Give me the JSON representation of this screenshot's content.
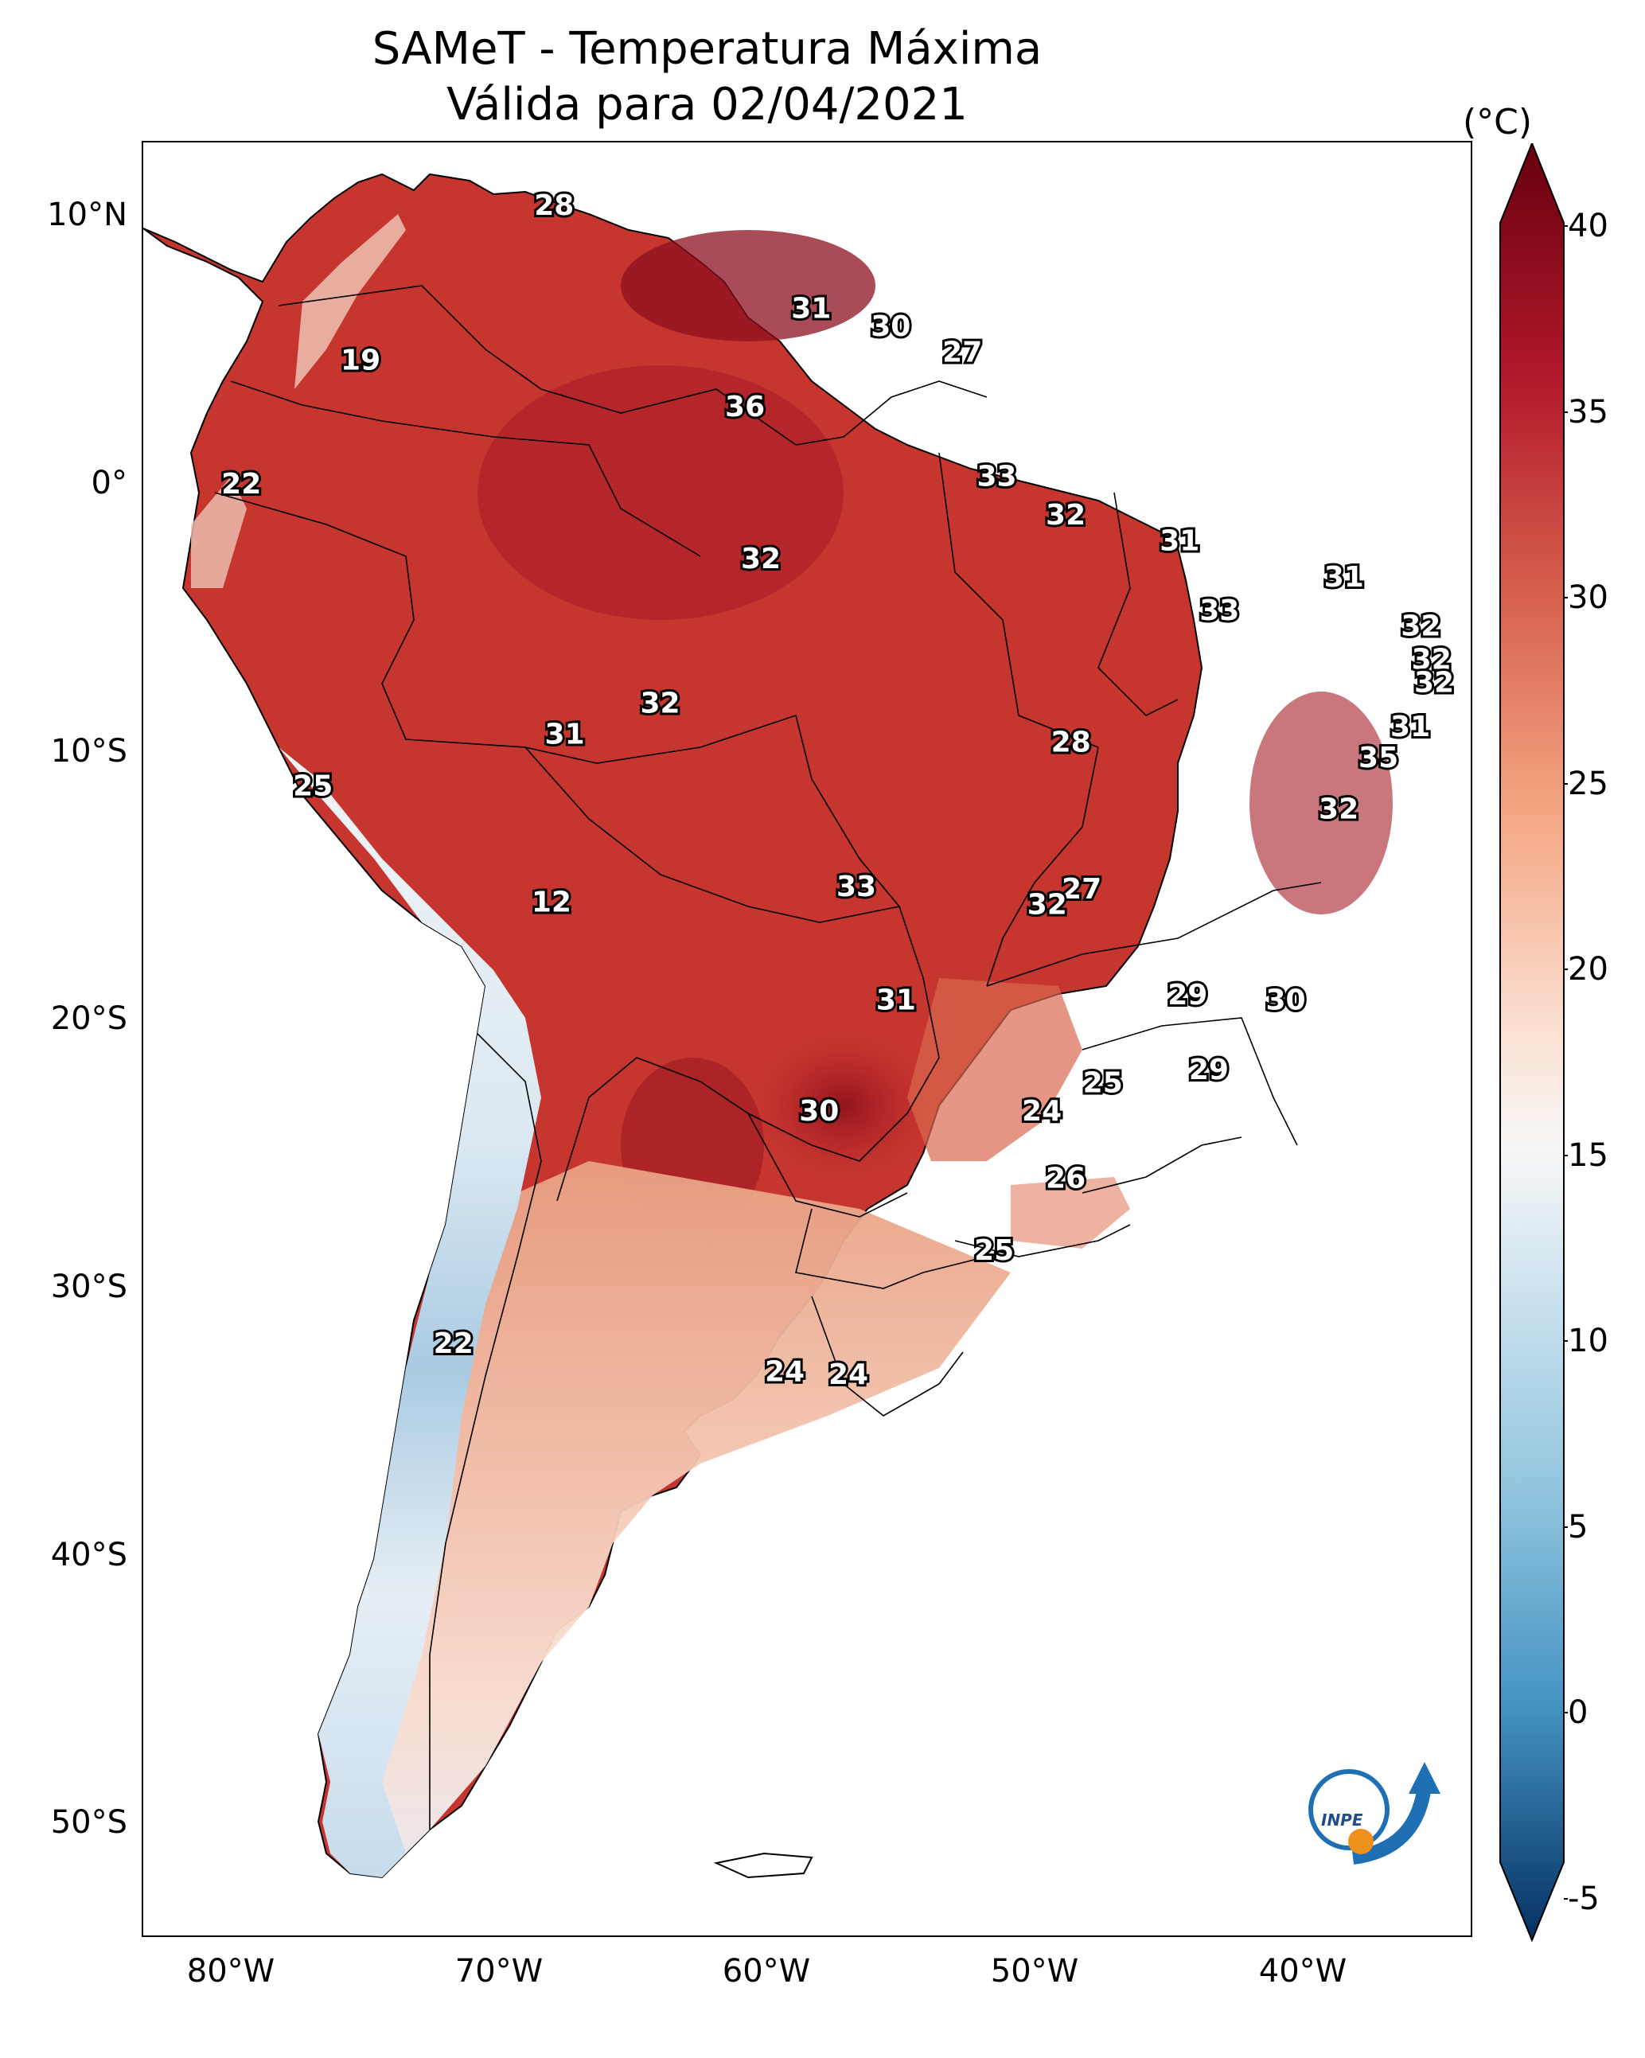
{
  "title": {
    "line1": "SAMeT - Temperatura Máxima",
    "line2": "Válida para 02/04/2021"
  },
  "colorbar": {
    "unit": "(°C)",
    "ticks": [
      "40",
      "35",
      "30",
      "25",
      "20",
      "15",
      "10",
      "5",
      "0",
      "-5"
    ],
    "min": -5,
    "max": 40,
    "colors": {
      "cold": "#0b2f6b",
      "cool": "#3d85c0",
      "neutral": "#f7f7f7",
      "warm": "#f0a07c",
      "hot": "#c0272d",
      "very_hot": "#67000d"
    }
  },
  "axes": {
    "lat_labels": [
      "10°N",
      "0°",
      "10°S",
      "20°S",
      "30°S",
      "40°S",
      "50°S"
    ],
    "lon_labels": [
      "80°W",
      "70°W",
      "60°W",
      "50°W",
      "40°W"
    ]
  },
  "map_labels": [
    {
      "text": "28",
      "lon": -67.5,
      "lat": 10.5
    },
    {
      "text": "19",
      "lon": -74.8,
      "lat": 4.5
    },
    {
      "text": "31",
      "lon": -57.8,
      "lat": 6.5
    },
    {
      "text": "30",
      "lon": -54.8,
      "lat": 5.8
    },
    {
      "text": "27",
      "lon": -52.1,
      "lat": 4.8
    },
    {
      "text": "36",
      "lon": -60.3,
      "lat": 2.7
    },
    {
      "text": "22",
      "lon": -79.3,
      "lat": -0.3
    },
    {
      "text": "33",
      "lon": -50.8,
      "lat": 0.0
    },
    {
      "text": "32",
      "lon": -48.2,
      "lat": -1.5
    },
    {
      "text": "31",
      "lon": -43.9,
      "lat": -2.5
    },
    {
      "text": "32",
      "lon": -59.7,
      "lat": -3.2
    },
    {
      "text": "31",
      "lon": -37.7,
      "lat": -3.9
    },
    {
      "text": "33",
      "lon": -42.4,
      "lat": -5.2
    },
    {
      "text": "32",
      "lon": -34.8,
      "lat": -5.8
    },
    {
      "text": "32",
      "lon": -34.4,
      "lat": -7.1
    },
    {
      "text": "32",
      "lon": -34.3,
      "lat": -8.0
    },
    {
      "text": "32",
      "lon": -63.5,
      "lat": -8.8
    },
    {
      "text": "31",
      "lon": -35.2,
      "lat": -9.7
    },
    {
      "text": "31",
      "lon": -67.1,
      "lat": -10.0
    },
    {
      "text": "28",
      "lon": -48.0,
      "lat": -10.3
    },
    {
      "text": "35",
      "lon": -36.4,
      "lat": -10.9
    },
    {
      "text": "25",
      "lon": -76.6,
      "lat": -12.0
    },
    {
      "text": "32",
      "lon": -37.9,
      "lat": -12.9
    },
    {
      "text": "33",
      "lon": -56.1,
      "lat": -15.9
    },
    {
      "text": "27",
      "lon": -47.6,
      "lat": -16.0
    },
    {
      "text": "32",
      "lon": -48.9,
      "lat": -16.6
    },
    {
      "text": "12",
      "lon": -67.6,
      "lat": -16.5
    },
    {
      "text": "29",
      "lon": -43.6,
      "lat": -20.1
    },
    {
      "text": "30",
      "lon": -39.9,
      "lat": -20.3
    },
    {
      "text": "31",
      "lon": -54.6,
      "lat": -20.3
    },
    {
      "text": "29",
      "lon": -42.8,
      "lat": -23.0
    },
    {
      "text": "25",
      "lon": -46.8,
      "lat": -23.5
    },
    {
      "text": "30",
      "lon": -57.5,
      "lat": -24.6
    },
    {
      "text": "24",
      "lon": -49.1,
      "lat": -24.6
    },
    {
      "text": "26",
      "lon": -48.2,
      "lat": -27.2
    },
    {
      "text": "25",
      "lon": -50.9,
      "lat": -30.0
    },
    {
      "text": "22",
      "lon": -71.3,
      "lat": -33.6
    },
    {
      "text": "24",
      "lon": -58.8,
      "lat": -34.7
    },
    {
      "text": "24",
      "lon": -56.4,
      "lat": -34.8
    }
  ],
  "logo": {
    "text": "INPE"
  }
}
